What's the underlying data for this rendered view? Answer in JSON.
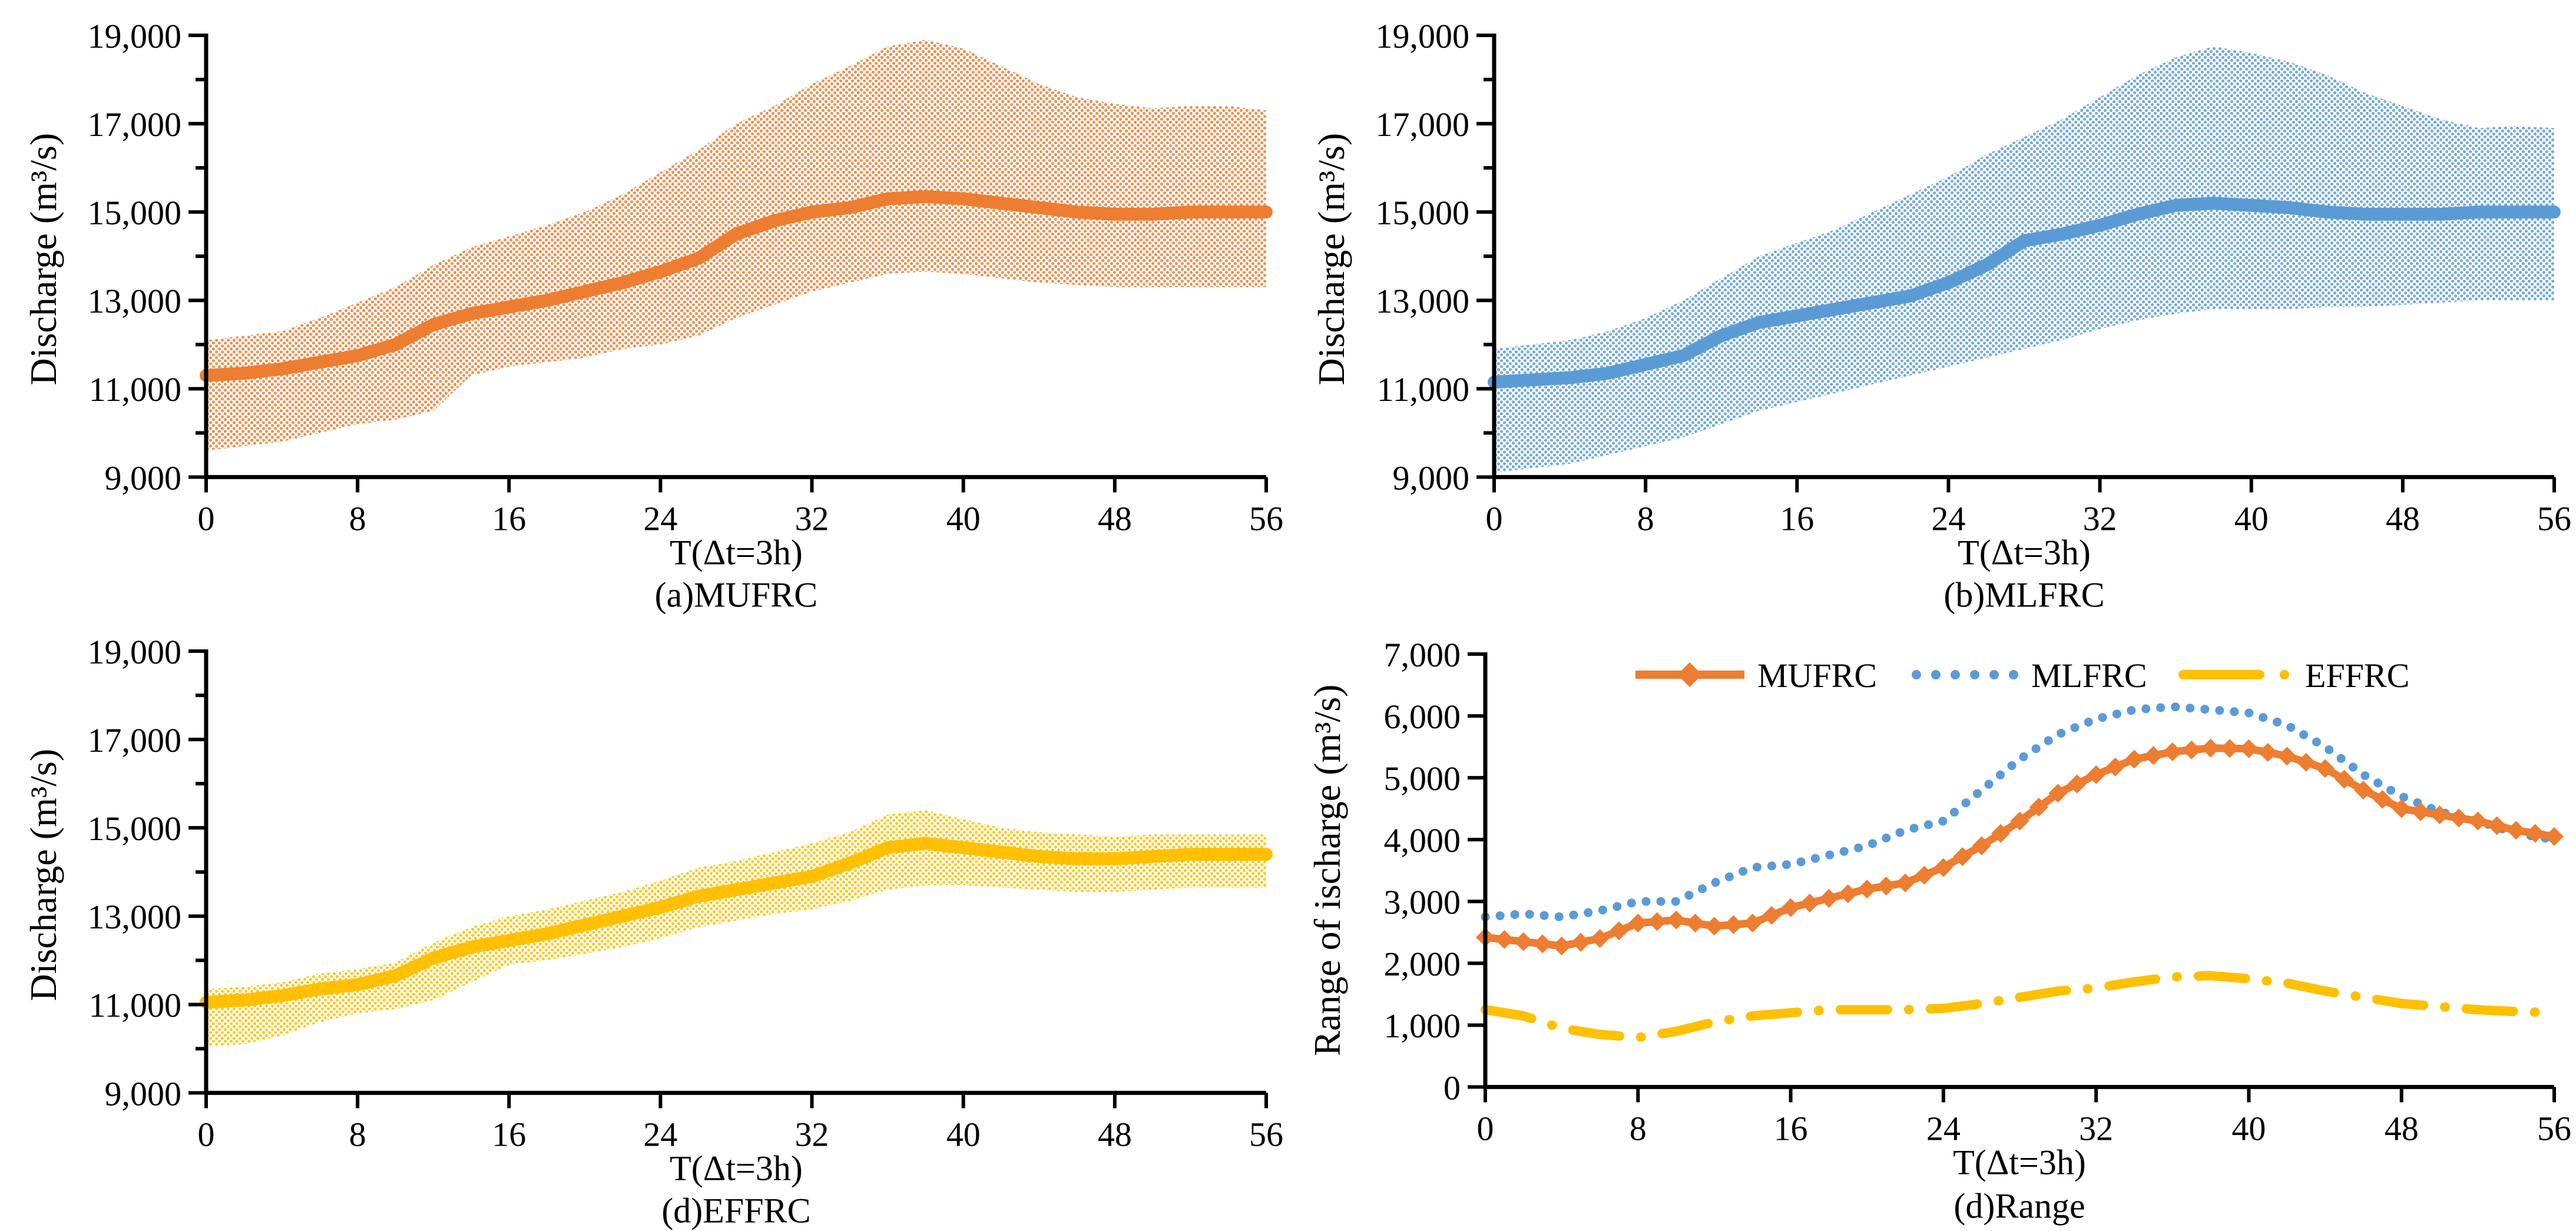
{
  "figure": {
    "background_color": "#ffffff",
    "axis_color": "#000000",
    "accent_colors": {
      "mufrc": "#ED7D31",
      "mlfrc": "#5B9BD5",
      "effrc": "#FFC000"
    }
  },
  "chart_data": [
    {
      "type": "area",
      "caption": "(a)MUFRC",
      "xlabel": "T(Δt=3h)",
      "ylabel": "Discharge (m³/s)",
      "color": "#ED7D31",
      "band_style": "dot-pattern",
      "legend_position": "none",
      "grid": false,
      "xlim": [
        0,
        56
      ],
      "xtick_step": 8,
      "ylim": [
        9000,
        19000
      ],
      "ytick_label_step": 2000,
      "ytick_minor_step": 1000,
      "x": [
        0,
        2,
        4,
        6,
        8,
        10,
        12,
        14,
        16,
        18,
        20,
        22,
        24,
        26,
        28,
        30,
        32,
        34,
        36,
        38,
        40,
        42,
        44,
        46,
        48,
        50,
        52,
        54,
        56
      ],
      "mean": [
        11300,
        11350,
        11450,
        11600,
        11750,
        12000,
        12450,
        12700,
        12850,
        13000,
        13200,
        13400,
        13650,
        13950,
        14500,
        14800,
        15000,
        15100,
        15300,
        15350,
        15300,
        15200,
        15100,
        15000,
        14950,
        14950,
        15000,
        15000,
        15000
      ],
      "upper": [
        12100,
        12200,
        12300,
        12600,
        12950,
        13300,
        13800,
        14200,
        14450,
        14700,
        15000,
        15400,
        15900,
        16400,
        17000,
        17400,
        17900,
        18300,
        18750,
        18900,
        18700,
        18300,
        17900,
        17600,
        17450,
        17350,
        17400,
        17400,
        17300
      ],
      "lower": [
        9600,
        9700,
        9800,
        10000,
        10200,
        10300,
        10500,
        11300,
        11500,
        11600,
        11700,
        11900,
        12000,
        12200,
        12600,
        12900,
        13200,
        13400,
        13600,
        13650,
        13600,
        13500,
        13400,
        13350,
        13300,
        13300,
        13300,
        13300,
        13300
      ]
    },
    {
      "type": "area",
      "caption": "(b)MLFRC",
      "xlabel": "T(Δt=3h)",
      "ylabel": "Discharge (m³/s)",
      "color": "#5B9BD5",
      "band_style": "dot-pattern",
      "legend_position": "none",
      "grid": false,
      "xlim": [
        0,
        56
      ],
      "xtick_step": 8,
      "ylim": [
        9000,
        19000
      ],
      "ytick_label_step": 2000,
      "ytick_minor_step": 1000,
      "x": [
        0,
        2,
        4,
        6,
        8,
        10,
        12,
        14,
        16,
        18,
        20,
        22,
        24,
        26,
        28,
        30,
        32,
        34,
        36,
        38,
        40,
        42,
        44,
        46,
        48,
        50,
        52,
        54,
        56
      ],
      "mean": [
        11150,
        11200,
        11250,
        11350,
        11550,
        11750,
        12200,
        12500,
        12650,
        12800,
        12950,
        13100,
        13400,
        13800,
        14350,
        14500,
        14700,
        14950,
        15150,
        15200,
        15150,
        15100,
        15000,
        14950,
        14950,
        14950,
        15000,
        15000,
        15000
      ],
      "upper": [
        11900,
        12000,
        12100,
        12300,
        12600,
        13000,
        13500,
        14000,
        14300,
        14600,
        15000,
        15400,
        15800,
        16300,
        16700,
        17100,
        17600,
        18100,
        18500,
        18750,
        18600,
        18400,
        18100,
        17700,
        17400,
        17100,
        16900,
        16950,
        16900
      ],
      "lower": [
        9100,
        9200,
        9300,
        9500,
        9700,
        9900,
        10200,
        10500,
        10700,
        10900,
        11100,
        11300,
        11500,
        11700,
        11900,
        12100,
        12350,
        12550,
        12700,
        12800,
        12800,
        12800,
        12850,
        12850,
        12900,
        12950,
        13000,
        13000,
        13000
      ]
    },
    {
      "type": "area",
      "caption": "(d)EFFRC",
      "xlabel": "T(Δt=3h)",
      "ylabel": "Discharge (m³/s)",
      "color": "#FFC000",
      "band_style": "dot-pattern",
      "legend_position": "none",
      "grid": false,
      "xlim": [
        0,
        56
      ],
      "xtick_step": 8,
      "ylim": [
        9000,
        19000
      ],
      "ytick_label_step": 2000,
      "ytick_minor_step": 1000,
      "x": [
        0,
        2,
        4,
        6,
        8,
        10,
        12,
        14,
        16,
        18,
        20,
        22,
        24,
        26,
        28,
        30,
        32,
        34,
        36,
        38,
        40,
        42,
        44,
        46,
        48,
        50,
        52,
        54,
        56
      ],
      "mean": [
        11050,
        11100,
        11200,
        11350,
        11450,
        11650,
        12050,
        12300,
        12450,
        12600,
        12800,
        13000,
        13200,
        13450,
        13600,
        13750,
        13900,
        14200,
        14550,
        14650,
        14550,
        14450,
        14350,
        14300,
        14300,
        14350,
        14400,
        14400,
        14400
      ],
      "upper": [
        11350,
        11400,
        11500,
        11700,
        11800,
        11950,
        12400,
        12750,
        13000,
        13150,
        13350,
        13550,
        13800,
        14100,
        14250,
        14450,
        14650,
        14900,
        15300,
        15400,
        15200,
        15000,
        14900,
        14850,
        14800,
        14850,
        14850,
        14850,
        14850
      ],
      "lower": [
        10050,
        10100,
        10300,
        10600,
        10800,
        10900,
        11100,
        11500,
        11900,
        12000,
        12150,
        12300,
        12500,
        12750,
        12900,
        13050,
        13150,
        13350,
        13600,
        13700,
        13700,
        13650,
        13600,
        13550,
        13550,
        13600,
        13650,
        13650,
        13650
      ]
    },
    {
      "type": "line",
      "caption": "(d)Range",
      "xlabel": "T(Δt=3h)",
      "ylabel": "Range of ischarge (m³/s)",
      "legend_position": "top",
      "grid": false,
      "xlim": [
        0,
        56
      ],
      "xtick_step": 8,
      "ylim": [
        0,
        7000
      ],
      "ytick_label_step": 1000,
      "x": [
        0,
        2,
        4,
        6,
        8,
        10,
        12,
        14,
        16,
        18,
        20,
        22,
        24,
        26,
        28,
        30,
        32,
        34,
        36,
        38,
        40,
        42,
        44,
        46,
        48,
        50,
        52,
        54,
        56
      ],
      "series": [
        {
          "name": "MUFRC",
          "color": "#ED7D31",
          "style": "solid-diamond",
          "values": [
            2420,
            2350,
            2280,
            2400,
            2650,
            2700,
            2600,
            2650,
            2900,
            3050,
            3200,
            3300,
            3550,
            3900,
            4300,
            4750,
            5050,
            5300,
            5420,
            5480,
            5470,
            5350,
            5150,
            4800,
            4500,
            4400,
            4300,
            4150,
            4050
          ]
        },
        {
          "name": "MLFRC",
          "color": "#5B9BD5",
          "style": "dotted",
          "values": [
            2750,
            2800,
            2750,
            2850,
            3000,
            3000,
            3300,
            3550,
            3600,
            3750,
            3900,
            4150,
            4300,
            4800,
            5300,
            5700,
            5950,
            6100,
            6150,
            6100,
            6050,
            5850,
            5500,
            5050,
            4700,
            4450,
            4300,
            4100,
            4000
          ]
        },
        {
          "name": "EFFRC",
          "color": "#FFC000",
          "style": "dash-dot",
          "values": [
            1250,
            1150,
            950,
            850,
            800,
            900,
            1050,
            1150,
            1200,
            1250,
            1250,
            1250,
            1270,
            1350,
            1450,
            1550,
            1600,
            1700,
            1780,
            1800,
            1750,
            1680,
            1550,
            1450,
            1350,
            1300,
            1250,
            1220,
            1200
          ]
        }
      ]
    }
  ]
}
